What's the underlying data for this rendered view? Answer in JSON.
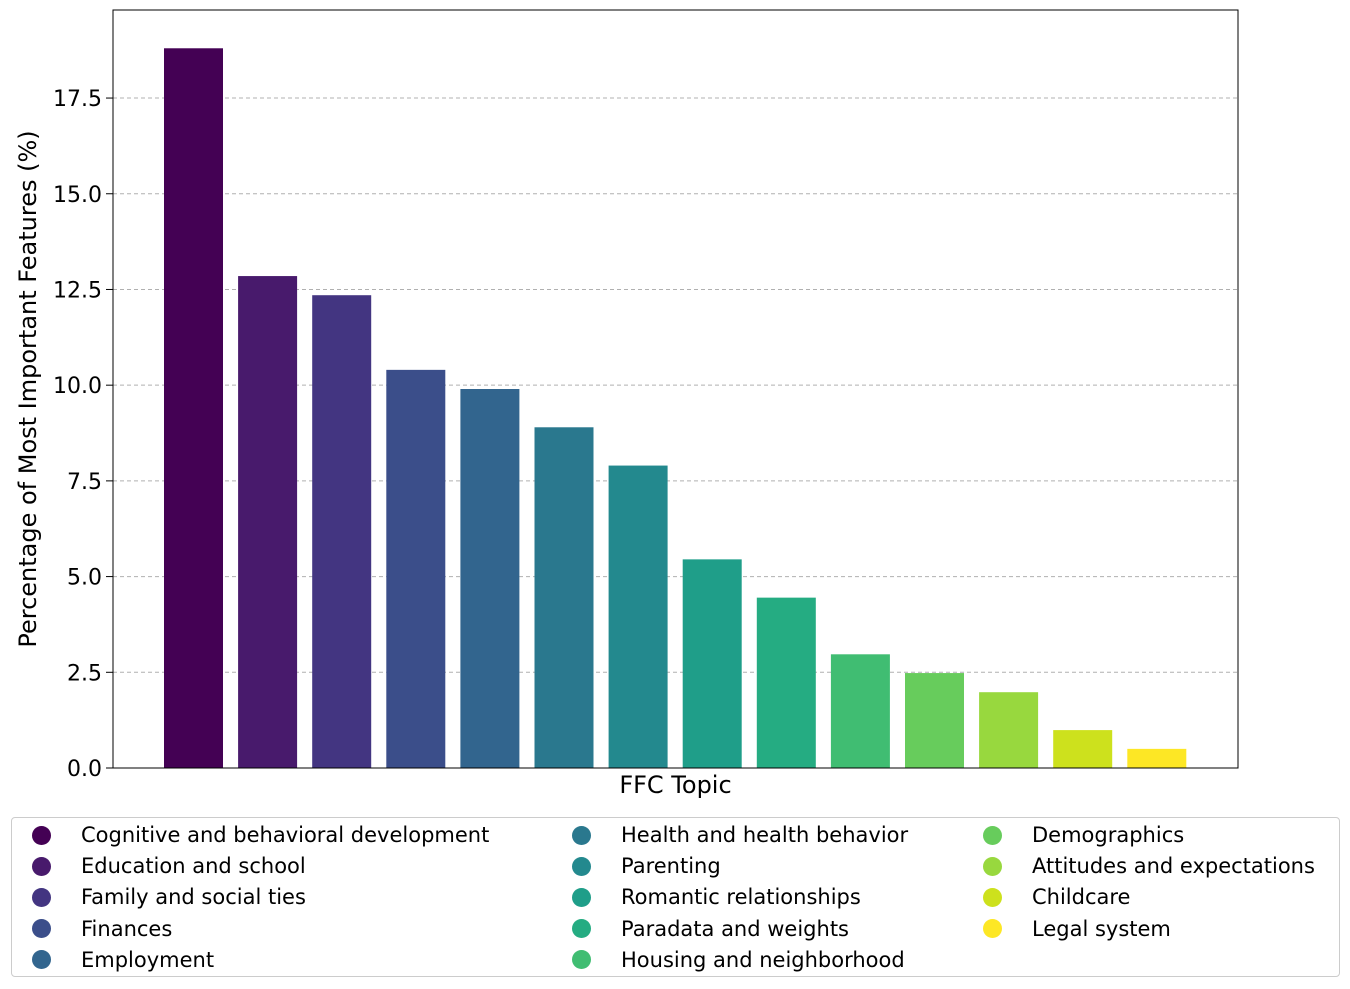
{
  "chart_data": {
    "type": "bar",
    "title": "",
    "xlabel": "FFC Topic",
    "ylabel": "Percentage of Most Important Features (%)",
    "ylim": [
      0,
      19.8
    ],
    "yticks": [
      "0.0",
      "2.5",
      "5.0",
      "7.5",
      "10.0",
      "12.5",
      "15.0",
      "17.5"
    ],
    "grid": "y-dashed",
    "legend_placement": "below",
    "categories": [
      "Cognitive and behavioral development",
      "Education and school",
      "Family and social ties",
      "Finances",
      "Employment",
      "Health and health behavior",
      "Parenting",
      "Romantic relationships",
      "Paradata and weights",
      "Housing and neighborhood",
      "Demographics",
      "Attitudes and expectations",
      "Childcare",
      "Legal system"
    ],
    "values": [
      18.8,
      12.85,
      12.35,
      10.4,
      9.9,
      8.9,
      7.9,
      5.45,
      4.45,
      2.97,
      2.48,
      1.98,
      0.99,
      0.5
    ],
    "colors": [
      "#440154",
      "#481a6c",
      "#433581",
      "#3b4e8a",
      "#32658e",
      "#2a788e",
      "#23898e",
      "#1f9e89",
      "#25ac82",
      "#40bd72",
      "#67cc5c",
      "#98d83e",
      "#cde11d",
      "#fde725"
    ]
  }
}
